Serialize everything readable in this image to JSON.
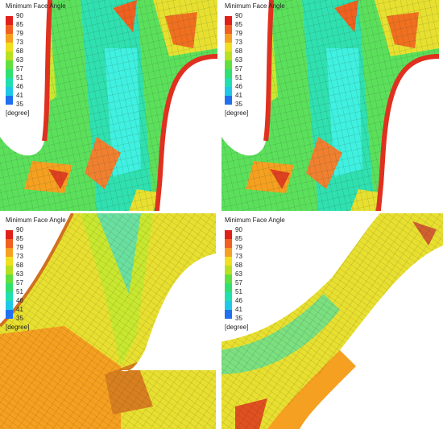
{
  "panels": [
    {
      "legend": {
        "title": "Minimum Face Angle",
        "ticks": [
          90,
          85,
          79,
          73,
          68,
          63,
          57,
          51,
          46,
          41,
          35
        ],
        "unit": "[degree]"
      }
    },
    {
      "legend": {
        "title": "Minimum Face Angle",
        "ticks": [
          90,
          85,
          79,
          73,
          68,
          63,
          57,
          51,
          46,
          41,
          35
        ],
        "unit": "[degree]"
      }
    },
    {
      "legend": {
        "title": "Minimum Face Angle",
        "ticks": [
          90,
          85,
          79,
          73,
          68,
          63,
          57,
          51,
          46,
          41,
          35
        ],
        "unit": "[degree]"
      }
    },
    {
      "legend": {
        "title": "Minimum Face Angle",
        "ticks": [
          90,
          85,
          79,
          73,
          68,
          63,
          57,
          51,
          46,
          41,
          35
        ],
        "unit": "[degree]"
      }
    }
  ]
}
